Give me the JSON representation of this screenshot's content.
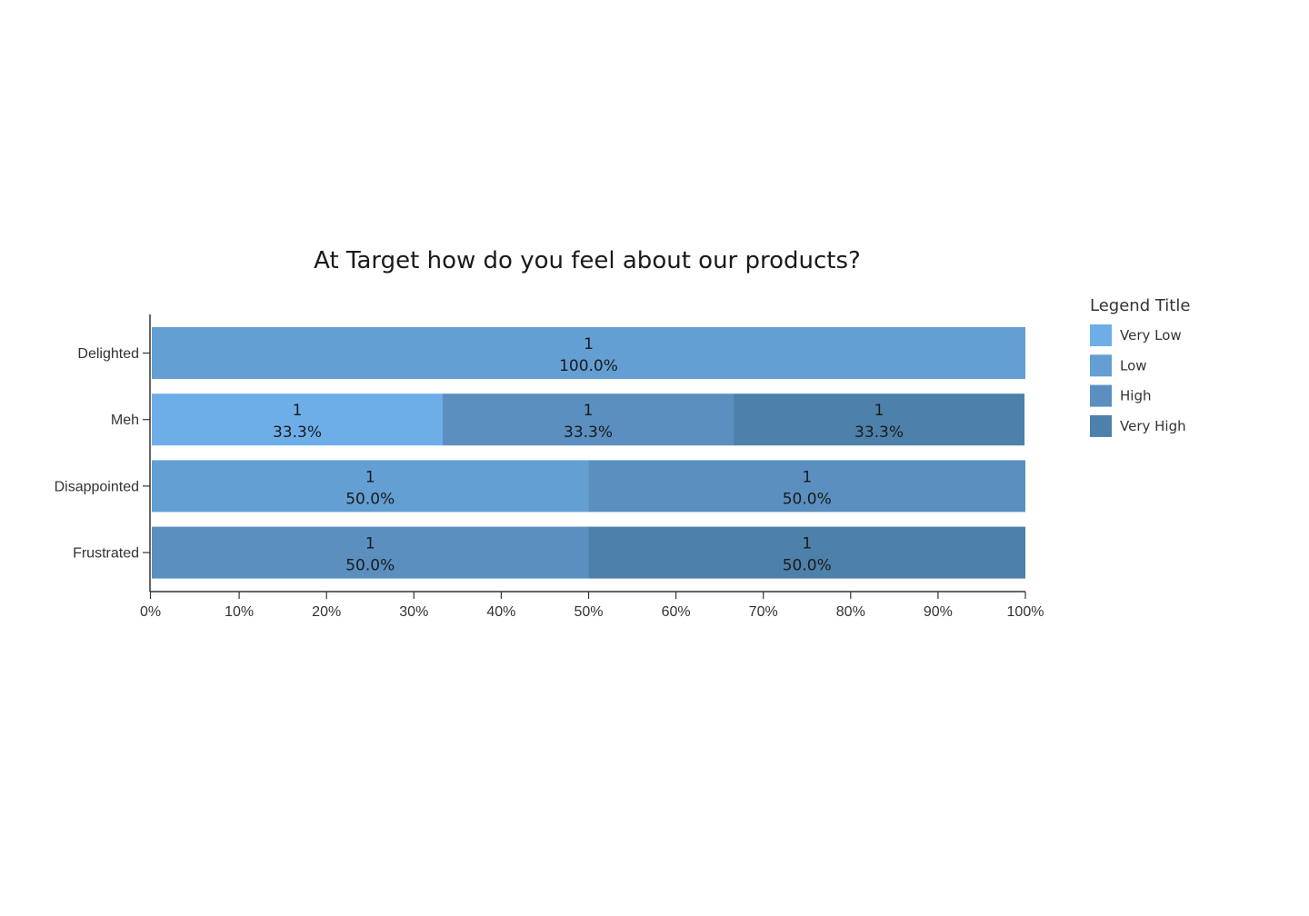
{
  "chart_data": {
    "type": "bar",
    "orientation": "horizontal",
    "stacked": "percent",
    "title": "At Target how do you feel about our products?",
    "xlabel": "",
    "ylabel": "",
    "xlim": [
      0,
      100
    ],
    "x_tick_labels": [
      "0%",
      "10%",
      "20%",
      "30%",
      "40%",
      "50%",
      "60%",
      "70%",
      "80%",
      "90%",
      "100%"
    ],
    "categories": [
      "Delighted",
      "Meh",
      "Disappointed",
      "Frustrated"
    ],
    "legend_title": "Legend Title",
    "legend_position": "right",
    "grid": false,
    "series": [
      {
        "name": "Very Low",
        "color": "#6daee9",
        "counts": [
          0,
          1,
          0,
          0
        ],
        "values": [
          0,
          33.3,
          0,
          0
        ],
        "labels": [
          "",
          "33.3%",
          "",
          ""
        ]
      },
      {
        "name": "Low",
        "color": "#639fd3",
        "counts": [
          1,
          0,
          1,
          0
        ],
        "values": [
          100,
          0,
          50,
          0
        ],
        "labels": [
          "100.0%",
          "",
          "50.0%",
          ""
        ]
      },
      {
        "name": "High",
        "color": "#5a8fc0",
        "counts": [
          0,
          1,
          1,
          1
        ],
        "values": [
          0,
          33.3,
          50,
          50
        ],
        "labels": [
          "",
          "33.3%",
          "50.0%",
          "50.0%"
        ]
      },
      {
        "name": "Very High",
        "color": "#4d80aa",
        "counts": [
          0,
          1,
          0,
          1
        ],
        "values": [
          0,
          33.3,
          0,
          50
        ],
        "labels": [
          "",
          "33.3%",
          "",
          "50.0%"
        ]
      }
    ]
  }
}
